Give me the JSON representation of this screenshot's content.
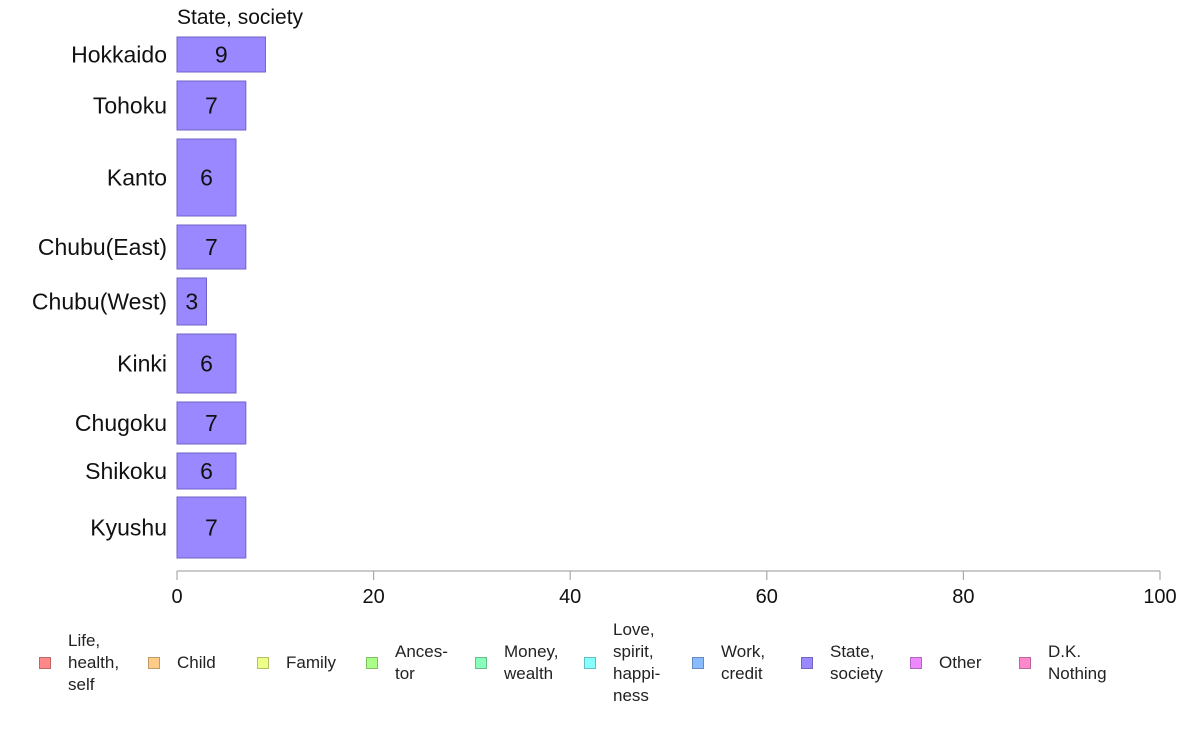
{
  "chart_data": {
    "type": "bar",
    "orientation": "horizontal",
    "title": "State, society",
    "categories": [
      "Hokkaido",
      "Tohoku",
      "Kanto",
      "Chubu(East)",
      "Chubu(West)",
      "Kinki",
      "Chugoku",
      "Shikoku",
      "Kyushu"
    ],
    "values": [
      9,
      7,
      6,
      7,
      3,
      6,
      7,
      6,
      7
    ],
    "bar_color": "#9988ff",
    "xlim": [
      0,
      100
    ],
    "x_ticks": [
      0,
      20,
      40,
      60,
      80,
      100
    ],
    "grid": false,
    "legend_position": "bottom",
    "legend": [
      {
        "label": "Life,\nhealth,\nself",
        "color": "#ff8888"
      },
      {
        "label": "Child",
        "color": "#ffcc88"
      },
      {
        "label": "Family",
        "color": "#eeff88"
      },
      {
        "label": "Ances-\ntor",
        "color": "#aaff88"
      },
      {
        "label": "Money,\nwealth",
        "color": "#88ffbb"
      },
      {
        "label": "Love,\nspirit,\nhappi-\nness",
        "color": "#88ffff"
      },
      {
        "label": "Work,\ncredit",
        "color": "#88bbff"
      },
      {
        "label": "State,\nsociety",
        "color": "#9988ff"
      },
      {
        "label": "Other",
        "color": "#ee88ff"
      },
      {
        "label": "D.K.\nNothing",
        "color": "#ff88cc"
      }
    ]
  }
}
